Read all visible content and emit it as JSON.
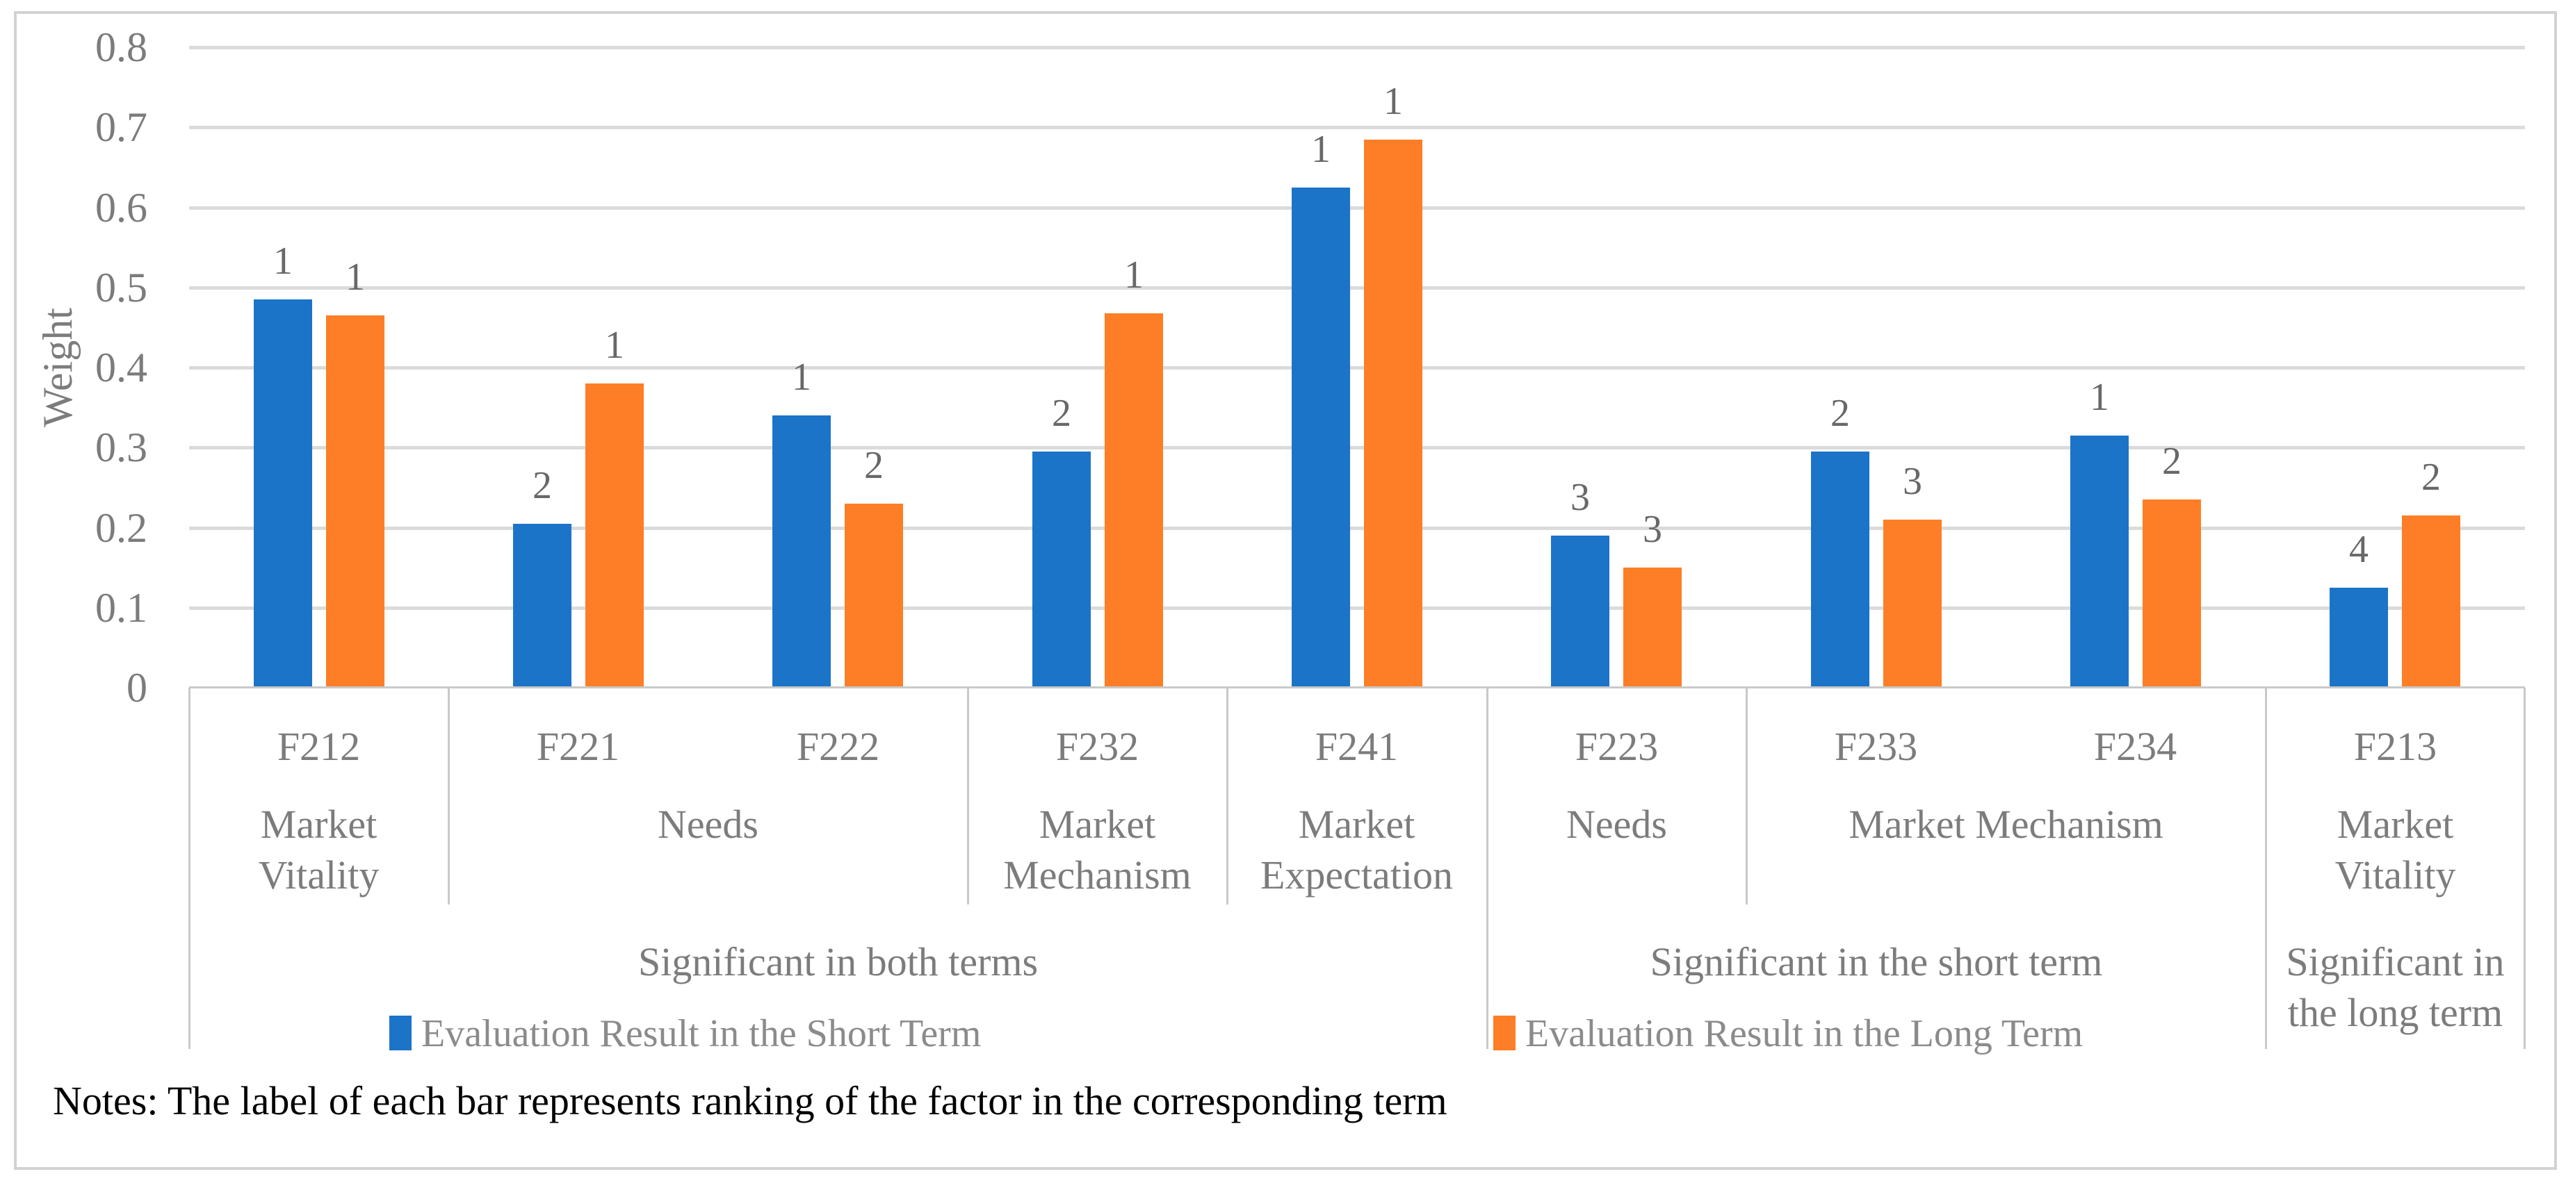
{
  "chart_data": {
    "type": "bar",
    "title": "",
    "ylabel": "Weight",
    "ylim": [
      0,
      0.8
    ],
    "yticks": [
      "0",
      "0.1",
      "0.2",
      "0.3",
      "0.4",
      "0.5",
      "0.6",
      "0.7",
      "0.8"
    ],
    "grid": "horizontal",
    "legend_position": "bottom",
    "categories": [
      {
        "code": "F212",
        "group": "Market Vitality",
        "term": "Significant in both terms"
      },
      {
        "code": "F221",
        "group": "Needs",
        "term": "Significant in both terms"
      },
      {
        "code": "F222",
        "group": "Needs",
        "term": "Significant in both terms"
      },
      {
        "code": "F232",
        "group": "Market Mechanism",
        "term": "Significant in both terms"
      },
      {
        "code": "F241",
        "group": "Market Expectation",
        "term": "Significant in both terms"
      },
      {
        "code": "F223",
        "group": "Needs",
        "term": "Significant in the short term"
      },
      {
        "code": "F233",
        "group": "Market Mechanism",
        "term": "Significant in the short term"
      },
      {
        "code": "F234",
        "group": "Market Mechanism",
        "term": "Significant in the short term"
      },
      {
        "code": "F213",
        "group": "Market Vitality",
        "term": "Significant in the long term"
      }
    ],
    "series": [
      {
        "name": "Evaluation Result in the Short Term",
        "color": "#1b74c8",
        "values": [
          0.485,
          0.205,
          0.34,
          0.295,
          0.625,
          0.19,
          0.295,
          0.315,
          0.125
        ],
        "ranks": [
          "1",
          "2",
          "1",
          "2",
          "1",
          "3",
          "2",
          "1",
          "4"
        ]
      },
      {
        "name": "Evaluation Result in the Long Term",
        "color": "#fd7e26",
        "values": [
          0.465,
          0.38,
          0.23,
          0.468,
          0.685,
          0.15,
          0.21,
          0.235,
          0.215
        ],
        "ranks": [
          "1",
          "1",
          "2",
          "1",
          "1",
          "3",
          "3",
          "2",
          "2"
        ]
      }
    ],
    "group_cells": [
      {
        "label": "Market Vitality",
        "span": 1,
        "lines": [
          "Market",
          "Vitality"
        ]
      },
      {
        "label": "Needs",
        "span": 2,
        "lines": [
          "Needs"
        ]
      },
      {
        "label": "Market Mechanism",
        "span": 1,
        "lines": [
          "Market",
          "Mechanism"
        ]
      },
      {
        "label": "Market Expectation",
        "span": 1,
        "lines": [
          "Market",
          "Expectation"
        ]
      },
      {
        "label": "Needs",
        "span": 1,
        "lines": [
          "Needs"
        ]
      },
      {
        "label": "Market Mechanism",
        "span": 2,
        "lines": [
          "Market Mechanism"
        ]
      },
      {
        "label": "Market Vitality",
        "span": 1,
        "lines": [
          "Market",
          "Vitality"
        ]
      }
    ],
    "term_cells": [
      {
        "label": "Significant in both terms",
        "span": 5,
        "lines": [
          "Significant in both terms"
        ]
      },
      {
        "label": "Significant in the short term",
        "span": 3,
        "lines": [
          "Significant in the short term"
        ]
      },
      {
        "label": "Significant in the long term",
        "span": 1,
        "lines": [
          "Significant in",
          "the long term"
        ]
      }
    ]
  },
  "legend": {
    "items": [
      {
        "label": "Evaluation Result in the Short Term",
        "color": "#1b74c8"
      },
      {
        "label": "Evaluation Result in the Long Term",
        "color": "#fd7e26"
      }
    ]
  },
  "notes": "Notes: The label of each bar represents ranking of the factor in the corresponding term",
  "colors": {
    "gridline": "#dbdbdb",
    "table_line": "#c9c9c9",
    "axis_text": "#7c7c7c",
    "rank_text": "#686868",
    "legend_text": "#8b8b8b",
    "notes_text": "#000000",
    "figure_border": "#d2d2d2"
  }
}
